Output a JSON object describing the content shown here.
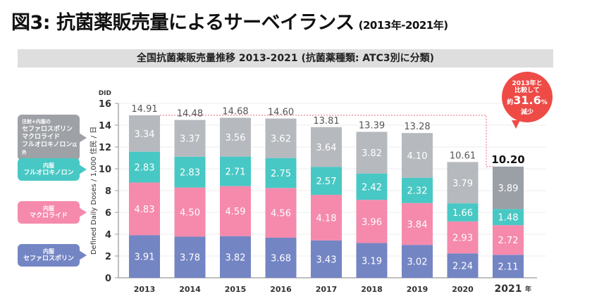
{
  "header": {
    "title": "図3: 抗菌薬販売量によるサーベイランス",
    "subtitle": "(2013年-2021年)"
  },
  "banner": {
    "text": "全国抗菌薬販売量推移 2013-2021 (抗菌薬種類: ATC3別に分類)"
  },
  "callouts": [
    {
      "lines": [
        "注射+内服の",
        "セファロスポリン",
        "マクロライド",
        "フルオロキノロン"
      ],
      "suffix": "以外",
      "color": "#9ea1a6"
    },
    {
      "lines": [
        "内服",
        "フルオロキノロン"
      ],
      "color": "#48c8c4"
    },
    {
      "lines": [
        "内服",
        "マクロライド"
      ],
      "color": "#f58aad"
    },
    {
      "lines": [
        "内服",
        "セファロスポリン"
      ],
      "color": "#7485c4"
    }
  ],
  "annotation": {
    "line1": "2013年と",
    "line2": "比較して",
    "prefix": "約",
    "value": "31.6",
    "unit": "%",
    "line4": "減少",
    "color": "#ee4b47"
  },
  "chart_data": {
    "type": "bar",
    "stacked": true,
    "title": "全国抗菌薬販売量推移 2013-2021 (抗菌薬種類: ATC3別に分類)",
    "ylabel": "Defined Daily Doses / 1,000 住民 / 日",
    "yunit": "DID",
    "ylim": [
      0,
      16
    ],
    "yticks": [
      0,
      2,
      4,
      6,
      8,
      10,
      12,
      14,
      16
    ],
    "grid": true,
    "categories": [
      "2013",
      "2014",
      "2015",
      "2016",
      "2017",
      "2018",
      "2019",
      "2020",
      "2021"
    ],
    "last_category_suffix": "年",
    "totals": [
      "14.91",
      "14.48",
      "14.68",
      "14.60",
      "13.81",
      "13.39",
      "13.28",
      "10.61",
      "10.20"
    ],
    "series": [
      {
        "name": "内服 セファロスポリン",
        "color": "#7485c4",
        "values": [
          3.91,
          3.78,
          3.82,
          3.68,
          3.43,
          3.19,
          3.02,
          2.24,
          2.11
        ]
      },
      {
        "name": "内服 マクロライド",
        "color": "#f58aad",
        "values": [
          4.83,
          4.5,
          4.59,
          4.56,
          4.18,
          3.96,
          3.84,
          2.93,
          2.72
        ]
      },
      {
        "name": "内服 フルオロキノロン",
        "color": "#48c8c4",
        "values": [
          2.83,
          2.83,
          2.71,
          2.75,
          2.57,
          2.42,
          2.32,
          1.66,
          1.48
        ]
      },
      {
        "name": "注射+内服のセファロスポリン マクロライド フルオロキノロン以外",
        "color": "#b6b9be",
        "values": [
          3.34,
          3.37,
          3.56,
          3.62,
          3.64,
          3.82,
          4.1,
          3.79,
          3.89
        ]
      }
    ],
    "highlight_last_other_color": "#9aa0a6",
    "reference_line": {
      "from": "2013",
      "to": "2021",
      "style": "dashed",
      "color": "#e46a7a"
    }
  }
}
